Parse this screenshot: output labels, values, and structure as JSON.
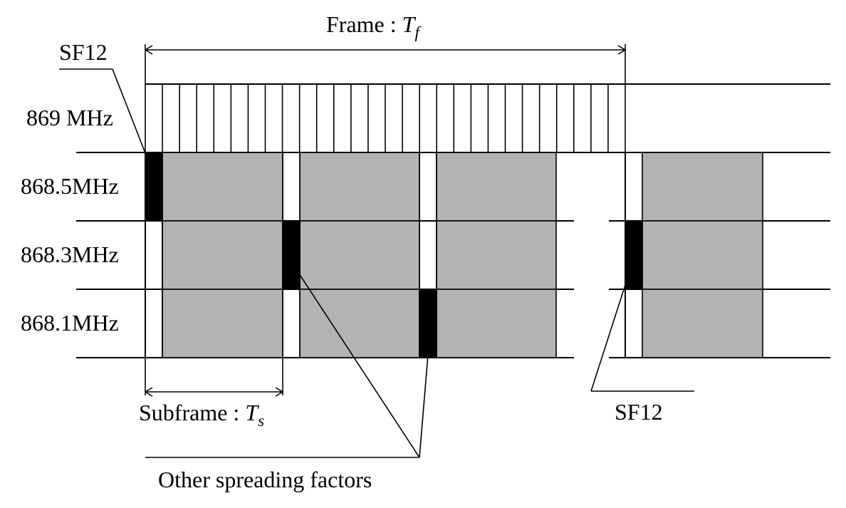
{
  "frame_label": {
    "text": "Frame : ",
    "symbol": "T",
    "subscript": "f"
  },
  "subframe_label": {
    "text": "Subframe : ",
    "symbol": "T",
    "subscript": "s"
  },
  "sf12_top": "SF12",
  "sf12_bottom": "SF12",
  "other_sf": "Other spreading factors",
  "channels": [
    "869 MHz",
    "868.5MHz",
    "868.3MHz",
    "868.1MHz"
  ],
  "colors": {
    "payload": "#b3b3b3",
    "marker": "#000000"
  }
}
